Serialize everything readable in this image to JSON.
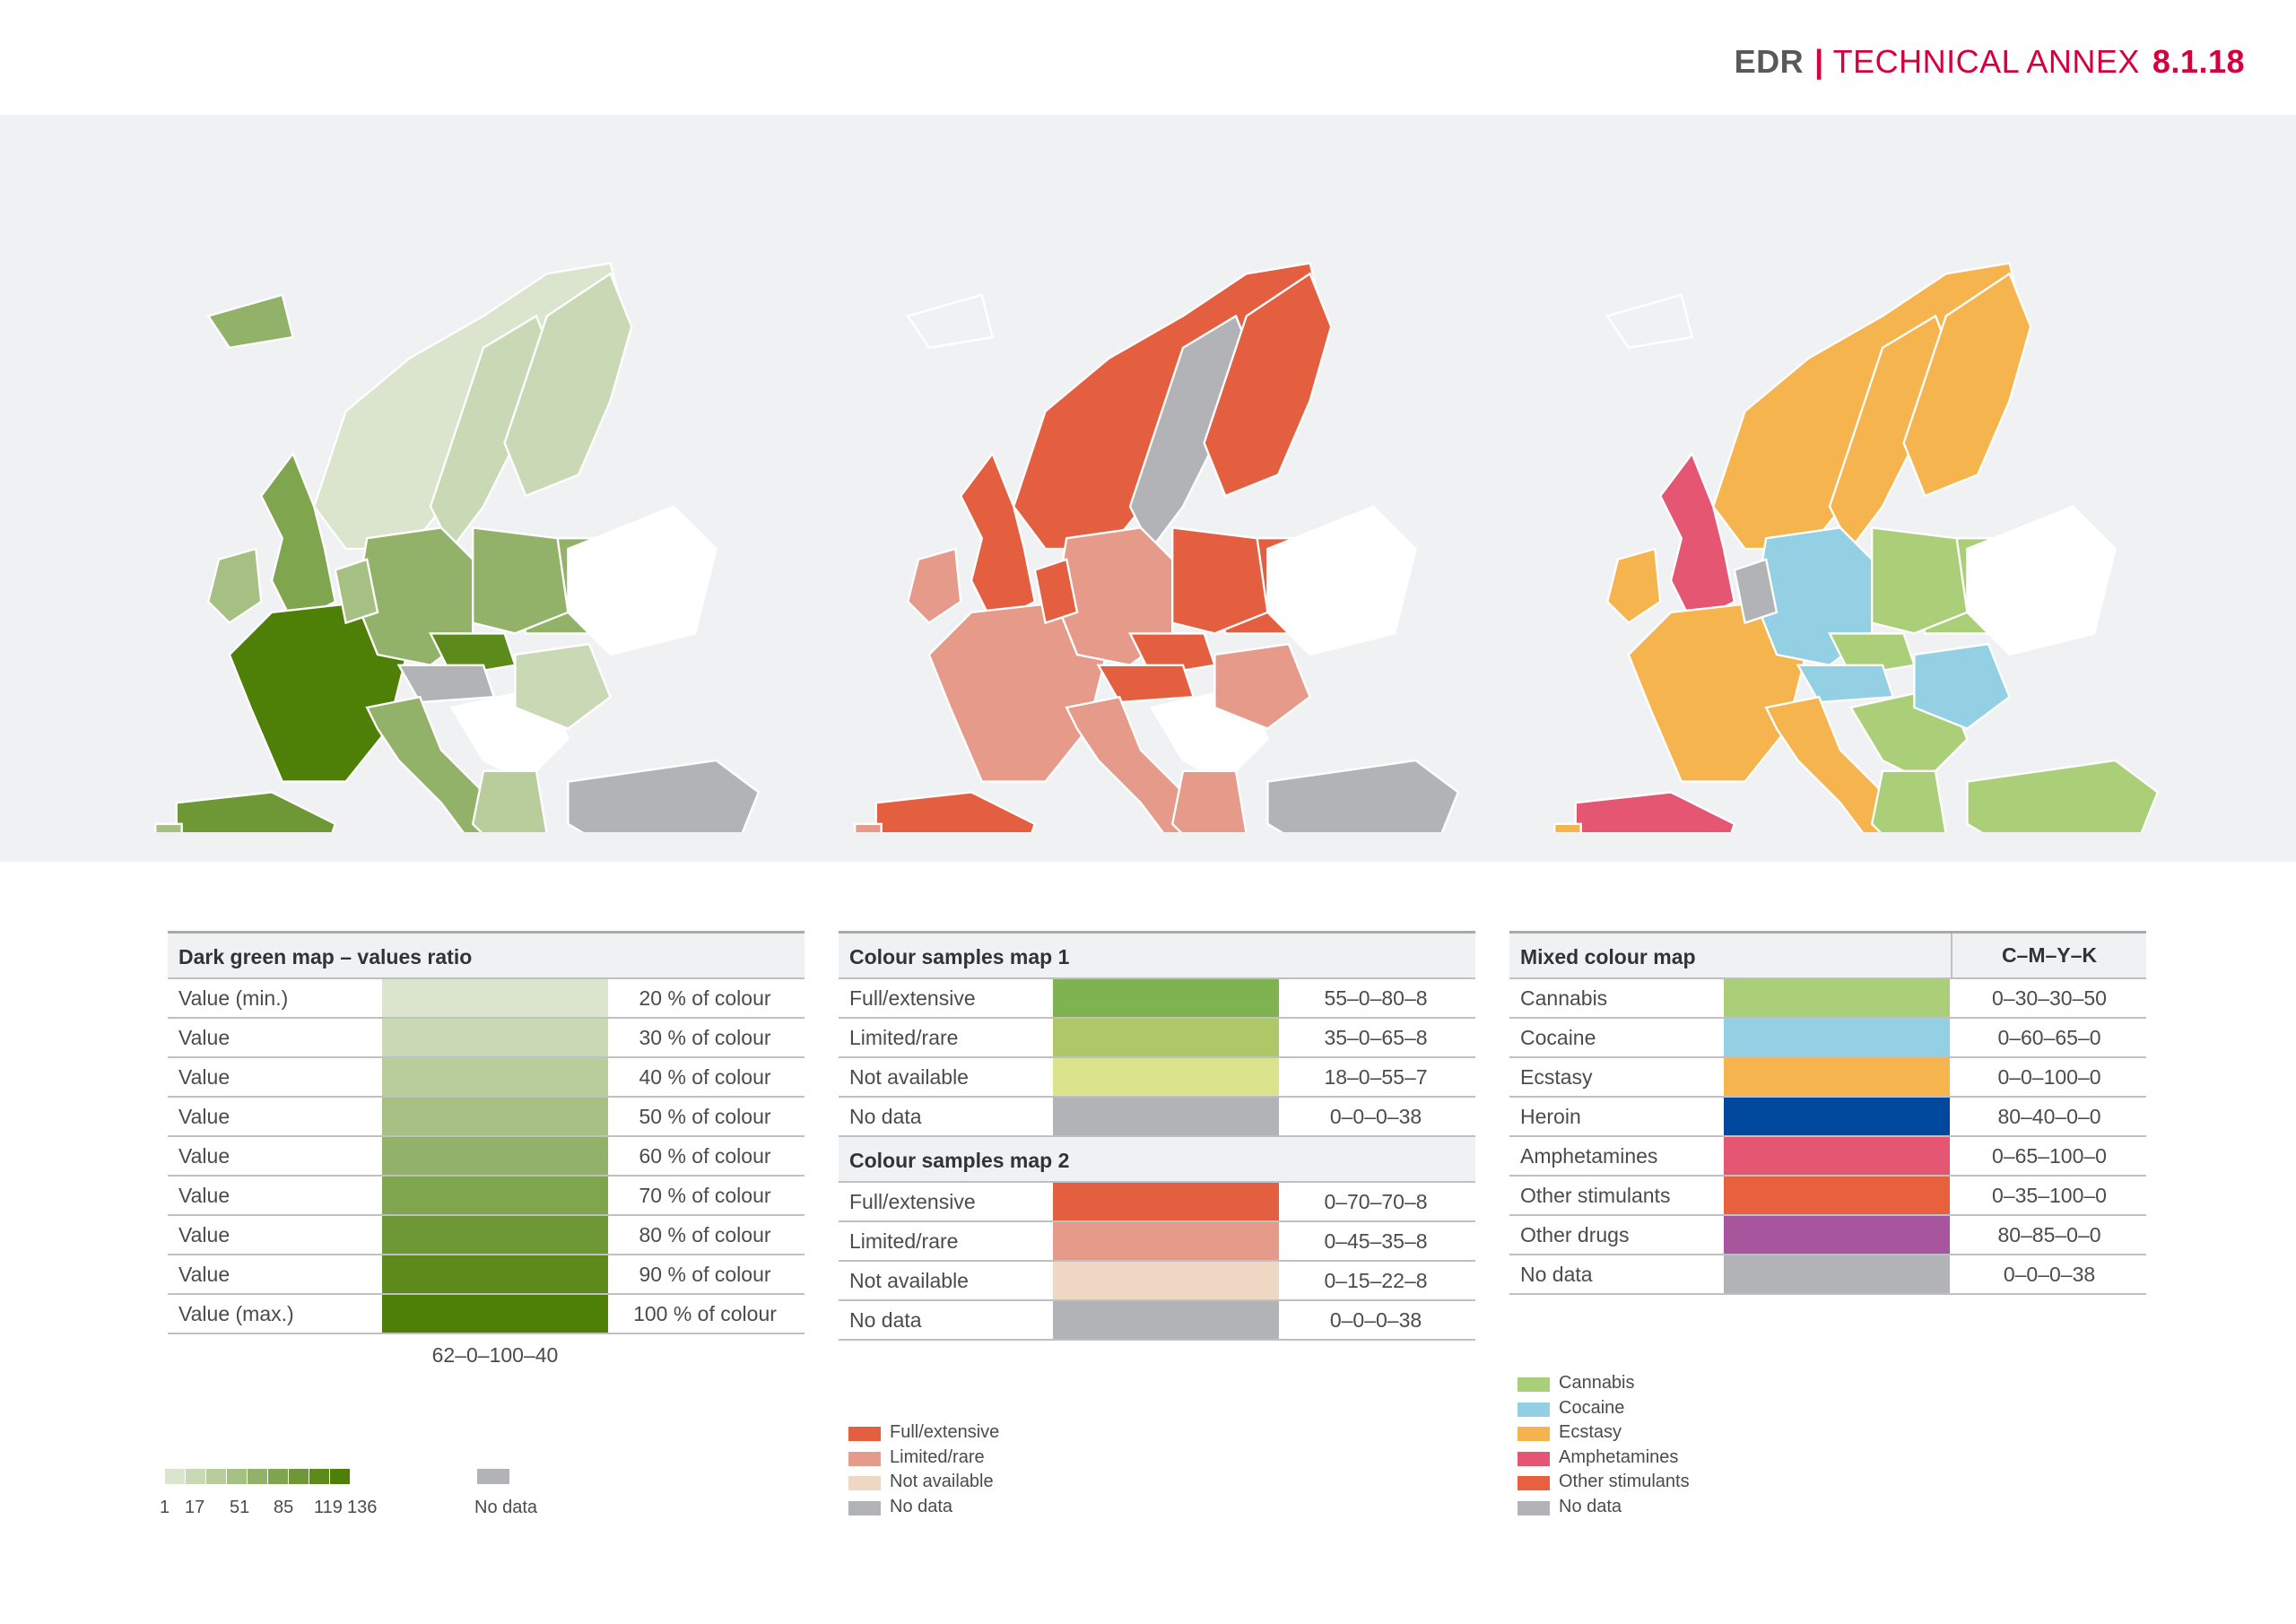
{
  "header": {
    "brand": "EDR",
    "section": "TECHNICAL ANNEX",
    "page": "8.1.18"
  },
  "colors": {
    "green": "#4e7f07",
    "red": "#e35f3f",
    "grey": "#b1b3b6",
    "band": "#f0f1f2"
  },
  "map1_note": "",
  "table1": {
    "title": "Dark green map – values ratio",
    "rows": [
      {
        "label": "Value (min.)",
        "pct": "20 % of colour",
        "color": "#dbe5cd"
      },
      {
        "label": "Value",
        "pct": "30 % of colour",
        "color": "#cad9b5"
      },
      {
        "label": "Value",
        "pct": "40 % of colour",
        "color": "#b8cc9c"
      },
      {
        "label": "Value",
        "pct": "50 % of colour",
        "color": "#a6bf83"
      },
      {
        "label": "Value",
        "pct": "60 % of colour",
        "color": "#93b269"
      },
      {
        "label": "Value",
        "pct": "70 % of colour",
        "color": "#80a54f"
      },
      {
        "label": "Value",
        "pct": "80 % of colour",
        "color": "#6d9835"
      },
      {
        "label": "Value",
        "pct": "90 % of colour",
        "color": "#5c8b1c"
      },
      {
        "label": "Value (max.)",
        "pct": "100 % of colour",
        "color": "#4e7f07"
      }
    ],
    "cmyk": "62–0–100–40"
  },
  "table2": {
    "title1": "Colour samples map 1",
    "rows1": [
      {
        "label": "Full/extensive",
        "cmyk": "55–0–80–8",
        "color": "#7fb250"
      },
      {
        "label": "Limited/rare",
        "cmyk": "35–0–65–8",
        "color": "#aec868"
      },
      {
        "label": "Not available",
        "cmyk": "18–0–55–7",
        "color": "#dbe38d"
      },
      {
        "label": "No data",
        "cmyk": "0–0–0–38",
        "color": "#b1b3b6"
      }
    ],
    "title2": "Colour samples map 2",
    "rows2": [
      {
        "label": "Full/extensive",
        "cmyk": "0–70–70–8",
        "color": "#e35f3f"
      },
      {
        "label": "Limited/rare",
        "cmyk": "0–45–35–8",
        "color": "#e69a8a"
      },
      {
        "label": "Not available",
        "cmyk": "0–15–22–8",
        "color": "#eed8c4"
      },
      {
        "label": "No data",
        "cmyk": "0–0–0–38",
        "color": "#b1b3b6"
      }
    ]
  },
  "table3": {
    "title": "Mixed colour map",
    "col": "C–M–Y–K",
    "rows": [
      {
        "label": "Cannabis",
        "cmyk": "0–30–30–50",
        "color": "#abcf78"
      },
      {
        "label": "Cocaine",
        "cmyk": "0–60–65–0",
        "color": "#94d0e3"
      },
      {
        "label": "Ecstasy",
        "cmyk": "0–0–100–0",
        "color": "#f6b44e"
      },
      {
        "label": "Heroin",
        "cmyk": "80–40–0–0",
        "color": "#00489b"
      },
      {
        "label": "Amphetamines",
        "cmyk": "0–65–100–0",
        "color": "#e55673"
      },
      {
        "label": "Other stimulants",
        "cmyk": "0–35–100–0",
        "color": "#e9603f"
      },
      {
        "label": "Other drugs",
        "cmyk": "80–85–0–0",
        "color": "#a7559d"
      },
      {
        "label": "No data",
        "cmyk": "0–0–0–38",
        "color": "#b1b3b6"
      }
    ]
  },
  "legend1": {
    "ticks": [
      "1",
      "17",
      "51",
      "85",
      "119",
      "136"
    ],
    "nodata": "No data"
  },
  "legend2": [
    {
      "label": "Full/extensive",
      "color": "#e35f3f"
    },
    {
      "label": "Limited/rare",
      "color": "#e69a8a"
    },
    {
      "label": "Not available",
      "color": "#eed8c4"
    },
    {
      "label": "No data",
      "color": "#b1b3b6"
    }
  ],
  "legend3": [
    {
      "label": "Cannabis",
      "color": "#abcf78"
    },
    {
      "label": "Cocaine",
      "color": "#94d0e3"
    },
    {
      "label": "Ecstasy",
      "color": "#f6b44e"
    },
    {
      "label": "Amphetamines",
      "color": "#e55673"
    },
    {
      "label": "Other stimulants",
      "color": "#e9603f"
    },
    {
      "label": "No data",
      "color": "#b1b3b6"
    }
  ]
}
